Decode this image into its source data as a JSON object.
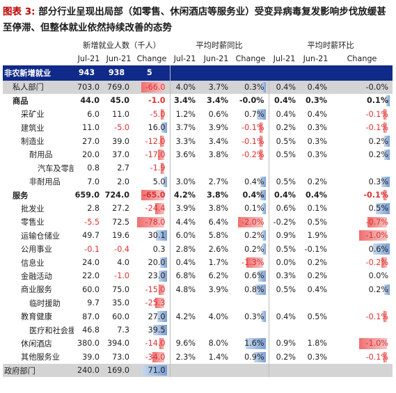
{
  "title": {
    "fig": "图表 3:",
    "text": "部分行业呈现出局部（如零售、休闲酒店等服务业）受变异病毒复发影响步伐放缓甚至停滞、但整体就业依然持续改善的态势"
  },
  "groups": [
    "新增就业人数（千人）",
    "平均时薪同比",
    "平均时薪环比"
  ],
  "col_headers": [
    "Jul-21",
    "Jun-21",
    "Change",
    "Jul-21",
    "Jun-21",
    "Change",
    "Jul-21",
    "Jun-21",
    "Change"
  ],
  "rows": [
    {
      "label": "非农新增就业",
      "style": "nfp",
      "indent": 0,
      "emp": [
        "943",
        "938",
        "5"
      ],
      "yoy": [
        "",
        "",
        ""
      ],
      "mom": [
        "",
        "",
        ""
      ]
    },
    {
      "label": "私人部门",
      "style": "priv",
      "indent": 1,
      "emp": [
        "703.0",
        "769.0",
        "-66.0"
      ],
      "yoy": [
        "4.0%",
        "3.7%",
        "0.3%"
      ],
      "mom": [
        "0.4%",
        "0.4%",
        "-0.0%"
      ]
    },
    {
      "label": "商品",
      "style": "bold",
      "indent": 1,
      "emp": [
        "44.0",
        "45.0",
        "-1.0"
      ],
      "yoy": [
        "3.4%",
        "3.4%",
        "-0.0%"
      ],
      "mom": [
        "0.4%",
        "0.3%",
        "0.1%"
      ]
    },
    {
      "label": "采矿业",
      "style": "",
      "indent": 2,
      "emp": [
        "6.0",
        "11.0",
        "-5.0"
      ],
      "yoy": [
        "1.2%",
        "0.6%",
        "0.7%"
      ],
      "mom": [
        "0.4%",
        "0.4%",
        "-0.1%"
      ]
    },
    {
      "label": "建筑业",
      "style": "",
      "indent": 2,
      "emp": [
        "11.0",
        "-5.0",
        "16.0"
      ],
      "yoy": [
        "3.7%",
        "3.9%",
        "-0.1%"
      ],
      "mom": [
        "0.2%",
        "0.3%",
        "-0.1%"
      ]
    },
    {
      "label": "制造业",
      "style": "",
      "indent": 2,
      "emp": [
        "27.0",
        "39.0",
        "-12.0"
      ],
      "yoy": [
        "3.3%",
        "3.4%",
        "-0.1%"
      ],
      "mom": [
        "0.5%",
        "0.3%",
        "0.2%"
      ]
    },
    {
      "label": "耐用品",
      "style": "",
      "indent": 3,
      "emp": [
        "20.0",
        "37.0",
        "-17.0"
      ],
      "yoy": [
        "3.6%",
        "3.8%",
        "-0.2%"
      ],
      "mom": [
        "0.5%",
        "0.3%",
        "0.2%"
      ]
    },
    {
      "label": "汽车及零部件",
      "style": "",
      "indent": 4,
      "emp": [
        "0.8",
        "2.7",
        "-1.9"
      ],
      "yoy": [
        "",
        "",
        ""
      ],
      "mom": [
        "",
        "",
        ""
      ]
    },
    {
      "label": "非耐用品",
      "style": "",
      "indent": 3,
      "emp": [
        "7.0",
        "2.0",
        "5.0"
      ],
      "yoy": [
        "3.0%",
        "2.7%",
        "0.4%"
      ],
      "mom": [
        "0.5%",
        "0.2%",
        "0.3%"
      ]
    },
    {
      "label": "服务",
      "style": "bold",
      "indent": 1,
      "emp": [
        "659.0",
        "724.0",
        "-65.0"
      ],
      "yoy": [
        "4.2%",
        "3.8%",
        "0.4%"
      ],
      "mom": [
        "0.4%",
        "0.4%",
        "-0.1%"
      ]
    },
    {
      "label": "批发业",
      "style": "",
      "indent": 2,
      "emp": [
        "2.8",
        "27.2",
        "-24.4"
      ],
      "yoy": [
        "3.9%",
        "3.8%",
        "0.1%"
      ],
      "mom": [
        "0.6%",
        "0.1%",
        "0.5%"
      ]
    },
    {
      "label": "零售业",
      "style": "",
      "indent": 2,
      "emp": [
        "-5.5",
        "72.5",
        "-78.0"
      ],
      "yoy": [
        "4.4%",
        "6.4%",
        "-2.0%"
      ],
      "mom": [
        "-0.2%",
        "0.5%",
        "-0.7%"
      ]
    },
    {
      "label": "运输仓储业",
      "style": "",
      "indent": 2,
      "emp": [
        "49.7",
        "19.6",
        "30.1"
      ],
      "yoy": [
        "6.0%",
        "5.8%",
        "0.2%"
      ],
      "mom": [
        "0.9%",
        "1.9%",
        "-1.0%"
      ]
    },
    {
      "label": "公用事业",
      "style": "",
      "indent": 2,
      "emp": [
        "-0.1",
        "-0.4",
        "0.3"
      ],
      "yoy": [
        "2.8%",
        "2.6%",
        "0.2%"
      ],
      "mom": [
        "0.5%",
        "-0.1%",
        "0.6%"
      ]
    },
    {
      "label": "信息业",
      "style": "",
      "indent": 2,
      "emp": [
        "24.0",
        "4.0",
        "20.0"
      ],
      "yoy": [
        "0.4%",
        "1.7%",
        "-1.3%"
      ],
      "mom": [
        "0.0%",
        "0.2%",
        "-0.2%"
      ]
    },
    {
      "label": "金融活动",
      "style": "",
      "indent": 2,
      "emp": [
        "22.0",
        "-1.0",
        "23.0"
      ],
      "yoy": [
        "6.8%",
        "6.2%",
        "0.6%"
      ],
      "mom": [
        "0.3%",
        "0.2%",
        "0.0%"
      ]
    },
    {
      "label": "商业服务",
      "style": "",
      "indent": 2,
      "emp": [
        "60.0",
        "75.0",
        "-15.0"
      ],
      "yoy": [
        "4.8%",
        "3.9%",
        "0.8%"
      ],
      "mom": [
        "0.5%",
        "0.4%",
        "0.2%"
      ]
    },
    {
      "label": "临时援助",
      "style": "",
      "indent": 3,
      "emp": [
        "9.7",
        "35.0",
        "-25.3"
      ],
      "yoy": [
        "",
        "",
        ""
      ],
      "mom": [
        "",
        "",
        ""
      ]
    },
    {
      "label": "教育健康",
      "style": "",
      "indent": 2,
      "emp": [
        "87.0",
        "60.0",
        "27.0"
      ],
      "yoy": [
        "4.2%",
        "4.0%",
        "0.3%"
      ],
      "mom": [
        "0.4%",
        "0.5%",
        "-0.1%"
      ]
    },
    {
      "label": "医疗和社会援助",
      "style": "",
      "indent": 3,
      "emp": [
        "46.8",
        "7.3",
        "39.5"
      ],
      "yoy": [
        "",
        "",
        ""
      ],
      "mom": [
        "",
        "",
        ""
      ]
    },
    {
      "label": "休闲酒店",
      "style": "",
      "indent": 2,
      "emp": [
        "380.0",
        "394.0",
        "-14.0"
      ],
      "yoy": [
        "9.6%",
        "8.0%",
        "1.6%"
      ],
      "mom": [
        "0.9%",
        "1.8%",
        "-1.0%"
      ]
    },
    {
      "label": "其他服务业",
      "style": "",
      "indent": 2,
      "emp": [
        "39.0",
        "73.0",
        "-34.0"
      ],
      "yoy": [
        "2.3%",
        "1.4%",
        "0.9%"
      ],
      "mom": [
        "0.2%",
        "0.3%",
        "-0.1%"
      ]
    },
    {
      "label": "政府部门",
      "style": "gov",
      "indent": 0,
      "emp": [
        "240.0",
        "169.0",
        "71.0"
      ],
      "yoy": [
        "",
        "",
        ""
      ],
      "mom": [
        "",
        "",
        ""
      ]
    }
  ]
}
